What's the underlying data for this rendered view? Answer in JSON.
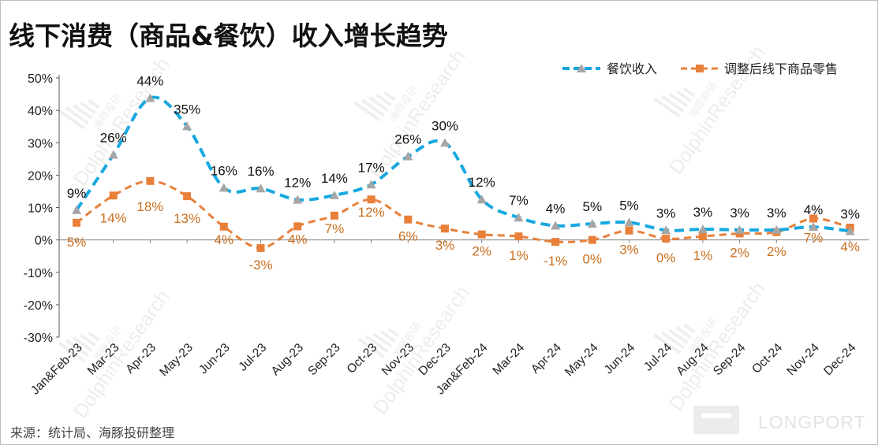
{
  "title": "线下消费（商品&餐饮）收入增长趋势",
  "source": "来源：统计局、海豚投研整理",
  "brand": {
    "text": "LONGPORT"
  },
  "watermark": {
    "line1": "海豚投研",
    "line2": "DolphinResearch"
  },
  "colors": {
    "blue": "#18a8e0",
    "orange": "#e8803a",
    "grey_marker": "#a6a6a6",
    "label_orange": "#c96f1e"
  },
  "chart_data": {
    "type": "line",
    "categories": [
      "Jan&Feb-23",
      "Mar-23",
      "Apr-23",
      "May-23",
      "Jun-23",
      "Jul-23",
      "Aug-23",
      "Sep-23",
      "Oct-23",
      "Nov-23",
      "Dec-23",
      "Jan&Feb-24",
      "Mar-24",
      "Apr-24",
      "May-24",
      "Jun-24",
      "Jul-24",
      "Aug-24",
      "Sep-24",
      "Oct-24",
      "Nov-24",
      "Dec-24"
    ],
    "ylim": [
      -30,
      50
    ],
    "yticks": [
      -30,
      -20,
      -10,
      0,
      10,
      20,
      30,
      40,
      50
    ],
    "ytick_labels": [
      "-30%",
      "-20%",
      "-10%",
      "0%",
      "10%",
      "20%",
      "30%",
      "40%",
      "50%"
    ],
    "legend_position": "top-right",
    "grid": false,
    "series": [
      {
        "name": "餐饮收入",
        "color": "#18a8e0",
        "marker": "triangle",
        "values": [
          9.2,
          26.3,
          43.8,
          35.1,
          16.1,
          15.9,
          12.4,
          13.8,
          17.1,
          25.8,
          30.0,
          12.5,
          6.9,
          4.4,
          5.0,
          5.4,
          3.0,
          3.3,
          3.1,
          3.1,
          4.0,
          2.7
        ],
        "labels": [
          "9%",
          "26%",
          "44%",
          "35%",
          "16%",
          "16%",
          "12%",
          "14%",
          "17%",
          "26%",
          "30%",
          "12%",
          "7%",
          "4%",
          "5%",
          "5%",
          "3%",
          "3%",
          "3%",
          "3%",
          "4%",
          "3%"
        ]
      },
      {
        "name": "调整后线下商品零售",
        "color": "#e8803a",
        "marker": "square",
        "values": [
          5.3,
          13.7,
          18.2,
          13.5,
          4.1,
          -2.5,
          4.2,
          7.5,
          12.5,
          6.3,
          3.5,
          1.7,
          1.1,
          -0.6,
          0.0,
          2.9,
          0.4,
          1.1,
          2.0,
          2.4,
          6.6,
          3.8
        ],
        "labels": [
          "5%",
          "14%",
          "18%",
          "13%",
          "4%",
          "-3%",
          "4%",
          "7%",
          "12%",
          "6%",
          "3%",
          "2%",
          "1%",
          "-1%",
          "0%",
          "3%",
          "0%",
          "1%",
          "2%",
          "2%",
          "7%",
          "4%"
        ]
      }
    ]
  }
}
